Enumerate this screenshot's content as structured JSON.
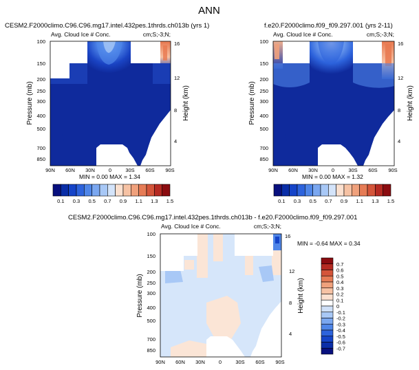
{
  "page": {
    "title": "ANN"
  },
  "chart_data": [
    {
      "type": "heatmap",
      "id": "panel1",
      "title": "CESM2.F2000climo.C96.C96.mg17.intel.432pes.1thrds.ch013b (yrs 1)",
      "left_label": "Avg. Cloud Ice # Conc.",
      "right_label": "cm;S;-3;N;",
      "ylabel": "Pressure (mb)",
      "ylabel_right": "Height (km)",
      "x_ticks": [
        "90N",
        "60N",
        "30N",
        "0",
        "30S",
        "60S",
        "90S"
      ],
      "y_ticks": [
        "100",
        "150",
        "200",
        "250",
        "300",
        "400",
        "500",
        "700",
        "850"
      ],
      "y_ticks_right": [
        "16",
        "12",
        "8",
        "4"
      ],
      "stats": "MIN =  0.00  MAX =  1.34",
      "min": 0.0,
      "max": 1.34
    },
    {
      "type": "heatmap",
      "id": "panel2",
      "title": "f.e20.F2000climo.f09_f09.297.001 (yrs 2-11)",
      "left_label": "Avg. Cloud Ice # Conc.",
      "right_label": "cm;S;-3;N;",
      "ylabel": "Pressure (mb)",
      "ylabel_right": "Height (km)",
      "x_ticks": [
        "90N",
        "60N",
        "30N",
        "0",
        "30S",
        "60S",
        "90S"
      ],
      "y_ticks": [
        "100",
        "150",
        "200",
        "250",
        "300",
        "400",
        "500",
        "700",
        "850"
      ],
      "y_ticks_right": [
        "16",
        "12",
        "8",
        "4"
      ],
      "stats": "MIN =  0.00  MAX =  1.32",
      "min": 0.0,
      "max": 1.32
    },
    {
      "type": "heatmap",
      "id": "diff",
      "title": "CESM2.F2000climo.C96.C96.mg17.intel.432pes.1thrds.ch013b - f.e20.F2000climo.f09_f09.297.001",
      "left_label": "Avg. Cloud Ice # Conc.",
      "right_label": "cm;S;-3;N;",
      "ylabel": "Pressure (mb)",
      "ylabel_right": "Height (km)",
      "x_ticks": [
        "90N",
        "60N",
        "30N",
        "0",
        "30S",
        "60S",
        "90S"
      ],
      "y_ticks": [
        "100",
        "150",
        "200",
        "250",
        "300",
        "400",
        "500",
        "700",
        "850"
      ],
      "y_ticks_right": [
        "16",
        "12",
        "8",
        "4"
      ],
      "stats": "MIN = -0.64  MAX =   0.34",
      "min": -0.64,
      "max": 0.34
    }
  ],
  "colorbar_abs": {
    "labels": [
      "0.1",
      "0.3",
      "0.5",
      "0.7",
      "0.9",
      "1.1",
      "1.3",
      "1.5"
    ],
    "colors": [
      "#08107e",
      "#0a2ea8",
      "#1544c8",
      "#2d63dc",
      "#4f86e8",
      "#7aa7f0",
      "#a8c8f6",
      "#d4e4fa",
      "#fbe0cf",
      "#f6c2a4",
      "#f0a17c",
      "#e67c56",
      "#d4553a",
      "#b52a22",
      "#8b0c10"
    ]
  },
  "colorbar_diff": {
    "labels": [
      "0.7",
      "0.6",
      "0.5",
      "0.4",
      "0.3",
      "0.2",
      "0.1",
      "0",
      "-0.1",
      "-0.2",
      "-0.3",
      "-0.4",
      "-0.5",
      "-0.6",
      "-0.7"
    ],
    "colors": [
      "#8b0c10",
      "#b52a22",
      "#d4553a",
      "#e67c56",
      "#f0a17c",
      "#f6c2a4",
      "#fbe0cf",
      "#ffffff",
      "#cfe0f8",
      "#a8c8f6",
      "#7aa7f0",
      "#4f86e8",
      "#2d63dc",
      "#1544c8",
      "#0a2ea8",
      "#08107e"
    ]
  }
}
